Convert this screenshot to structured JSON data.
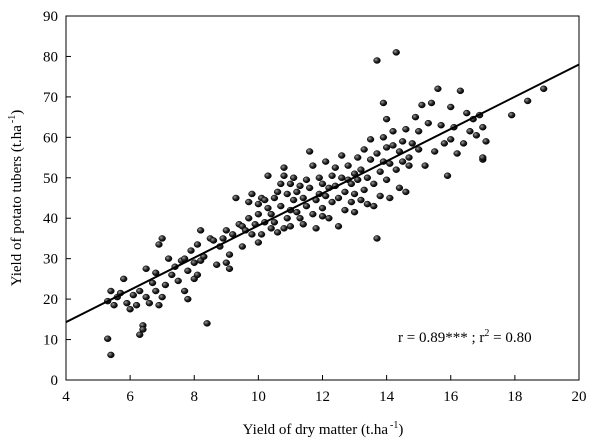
{
  "chart_data": {
    "type": "scatter",
    "xlabel": "Yield of dry matter (t.ha",
    "xlabel_sup": "-1",
    "xlabel_tail": ")",
    "ylabel": "Yield of potato tubers (t.ha",
    "ylabel_sup": "-1",
    "ylabel_tail": ")",
    "xlim": [
      4,
      20
    ],
    "ylim": [
      0,
      90
    ],
    "xticks": [
      "4",
      "6",
      "8",
      "10",
      "12",
      "14",
      "16",
      "18",
      "20"
    ],
    "yticks": [
      "0",
      "10",
      "20",
      "30",
      "40",
      "50",
      "60",
      "70",
      "80",
      "90"
    ],
    "grid": false,
    "annotation": {
      "prefix": "r = 0.89*** ; r",
      "sup": "2",
      "suffix": " = 0.80"
    },
    "fit_line": {
      "x": [
        4,
        20
      ],
      "y": [
        14.3,
        78.0
      ]
    },
    "points": [
      [
        5.3,
        10.2
      ],
      [
        5.4,
        6.2
      ],
      [
        5.3,
        19.5
      ],
      [
        5.4,
        22.0
      ],
      [
        5.5,
        18.5
      ],
      [
        5.6,
        20.5
      ],
      [
        5.7,
        21.5
      ],
      [
        5.8,
        25.0
      ],
      [
        5.9,
        19.0
      ],
      [
        6.0,
        17.5
      ],
      [
        6.1,
        21.0
      ],
      [
        6.2,
        18.5
      ],
      [
        6.3,
        11.2
      ],
      [
        6.3,
        22.0
      ],
      [
        6.4,
        13.5
      ],
      [
        6.4,
        12.5
      ],
      [
        6.5,
        20.5
      ],
      [
        6.5,
        27.5
      ],
      [
        6.6,
        19.0
      ],
      [
        6.7,
        24.0
      ],
      [
        6.8,
        22.0
      ],
      [
        6.8,
        26.5
      ],
      [
        6.9,
        18.5
      ],
      [
        6.9,
        33.5
      ],
      [
        7.0,
        35.0
      ],
      [
        7.0,
        20.5
      ],
      [
        7.1,
        23.5
      ],
      [
        7.2,
        30.0
      ],
      [
        7.3,
        26.0
      ],
      [
        7.4,
        28.0
      ],
      [
        7.5,
        24.5
      ],
      [
        7.6,
        29.5
      ],
      [
        7.7,
        30.0
      ],
      [
        7.7,
        22.0
      ],
      [
        7.8,
        27.0
      ],
      [
        7.8,
        20.0
      ],
      [
        7.9,
        32.0
      ],
      [
        8.0,
        29.0
      ],
      [
        8.0,
        25.0
      ],
      [
        8.1,
        26.0
      ],
      [
        8.1,
        33.5
      ],
      [
        8.2,
        37.0
      ],
      [
        8.2,
        29.5
      ],
      [
        8.3,
        30.5
      ],
      [
        8.4,
        14.0
      ],
      [
        8.5,
        35.0
      ],
      [
        8.6,
        34.5
      ],
      [
        8.7,
        28.5
      ],
      [
        8.8,
        33.0
      ],
      [
        8.9,
        35.0
      ],
      [
        9.0,
        37.0
      ],
      [
        9.0,
        29.0
      ],
      [
        9.1,
        31.0
      ],
      [
        9.1,
        27.5
      ],
      [
        9.2,
        36.0
      ],
      [
        9.3,
        45.0
      ],
      [
        9.4,
        38.5
      ],
      [
        9.5,
        38.0
      ],
      [
        9.5,
        33.0
      ],
      [
        9.6,
        37.0
      ],
      [
        9.7,
        40.0
      ],
      [
        9.7,
        44.0
      ],
      [
        9.8,
        36.0
      ],
      [
        9.8,
        46.0
      ],
      [
        9.9,
        38.5
      ],
      [
        10.0,
        41.0
      ],
      [
        10.0,
        43.5
      ],
      [
        10.0,
        34.0
      ],
      [
        10.1,
        36.0
      ],
      [
        10.1,
        45.0
      ],
      [
        10.2,
        39.0
      ],
      [
        10.2,
        44.5
      ],
      [
        10.3,
        50.5
      ],
      [
        10.3,
        42.5
      ],
      [
        10.4,
        41.0
      ],
      [
        10.4,
        37.5
      ],
      [
        10.5,
        45.0
      ],
      [
        10.5,
        39.0
      ],
      [
        10.6,
        46.5
      ],
      [
        10.6,
        36.5
      ],
      [
        10.7,
        48.5
      ],
      [
        10.7,
        43.0
      ],
      [
        10.8,
        50.5
      ],
      [
        10.8,
        52.5
      ],
      [
        10.8,
        37.5
      ],
      [
        10.9,
        46.0
      ],
      [
        10.9,
        40.0
      ],
      [
        11.0,
        42.0
      ],
      [
        11.0,
        48.5
      ],
      [
        11.0,
        38.0
      ],
      [
        11.1,
        44.5
      ],
      [
        11.1,
        50.0
      ],
      [
        11.2,
        41.5
      ],
      [
        11.2,
        46.5
      ],
      [
        11.3,
        40.0
      ],
      [
        11.3,
        48.0
      ],
      [
        11.4,
        45.0
      ],
      [
        11.4,
        38.5
      ],
      [
        11.5,
        49.5
      ],
      [
        11.5,
        43.0
      ],
      [
        11.6,
        56.5
      ],
      [
        11.6,
        47.5
      ],
      [
        11.7,
        41.0
      ],
      [
        11.7,
        53.0
      ],
      [
        11.8,
        44.5
      ],
      [
        11.8,
        37.5
      ],
      [
        11.9,
        50.0
      ],
      [
        11.9,
        46.0
      ],
      [
        12.0,
        42.5
      ],
      [
        12.0,
        48.5
      ],
      [
        12.0,
        40.5
      ],
      [
        12.1,
        54.0
      ],
      [
        12.1,
        45.5
      ],
      [
        12.2,
        47.5
      ],
      [
        12.2,
        40.0
      ],
      [
        12.3,
        50.5
      ],
      [
        12.3,
        44.0
      ],
      [
        12.4,
        52.5
      ],
      [
        12.4,
        48.0
      ],
      [
        12.5,
        45.0
      ],
      [
        12.5,
        38.0
      ],
      [
        12.6,
        50.0
      ],
      [
        12.6,
        55.5
      ],
      [
        12.7,
        46.5
      ],
      [
        12.7,
        42.0
      ],
      [
        12.8,
        49.5
      ],
      [
        12.8,
        53.0
      ],
      [
        12.9,
        44.0
      ],
      [
        12.9,
        48.5
      ],
      [
        13.0,
        51.0
      ],
      [
        13.0,
        46.0
      ],
      [
        13.0,
        41.5
      ],
      [
        13.1,
        55.0
      ],
      [
        13.1,
        49.5
      ],
      [
        13.2,
        52.0
      ],
      [
        13.2,
        44.5
      ],
      [
        13.3,
        57.0
      ],
      [
        13.3,
        47.0
      ],
      [
        13.4,
        50.0
      ],
      [
        13.4,
        43.5
      ],
      [
        13.5,
        54.5
      ],
      [
        13.5,
        59.5
      ],
      [
        13.6,
        48.5
      ],
      [
        13.6,
        43.0
      ],
      [
        13.7,
        79.0
      ],
      [
        13.7,
        35.0
      ],
      [
        13.7,
        56.0
      ],
      [
        13.8,
        51.5
      ],
      [
        13.8,
        45.5
      ],
      [
        13.9,
        68.5
      ],
      [
        13.9,
        60.0
      ],
      [
        13.9,
        54.0
      ],
      [
        14.0,
        64.5
      ],
      [
        14.0,
        49.5
      ],
      [
        14.0,
        57.5
      ],
      [
        14.1,
        45.0
      ],
      [
        14.1,
        53.5
      ],
      [
        14.2,
        61.5
      ],
      [
        14.2,
        58.0
      ],
      [
        14.3,
        81.0
      ],
      [
        14.3,
        52.0
      ],
      [
        14.4,
        56.5
      ],
      [
        14.4,
        47.5
      ],
      [
        14.5,
        54.0
      ],
      [
        14.5,
        59.0
      ],
      [
        14.6,
        62.0
      ],
      [
        14.6,
        46.5
      ],
      [
        14.7,
        55.0
      ],
      [
        14.7,
        53.0
      ],
      [
        14.8,
        58.5
      ],
      [
        14.9,
        65.0
      ],
      [
        15.0,
        57.0
      ],
      [
        15.0,
        61.5
      ],
      [
        15.1,
        68.0
      ],
      [
        15.2,
        53.0
      ],
      [
        15.3,
        63.5
      ],
      [
        15.4,
        68.5
      ],
      [
        15.5,
        56.5
      ],
      [
        15.6,
        72.0
      ],
      [
        15.7,
        63.0
      ],
      [
        15.8,
        58.5
      ],
      [
        15.9,
        50.5
      ],
      [
        16.0,
        59.5
      ],
      [
        16.0,
        67.5
      ],
      [
        16.1,
        62.5
      ],
      [
        16.2,
        56.0
      ],
      [
        16.3,
        71.5
      ],
      [
        16.4,
        58.5
      ],
      [
        16.5,
        66.0
      ],
      [
        16.6,
        61.5
      ],
      [
        16.7,
        64.5
      ],
      [
        16.8,
        60.5
      ],
      [
        16.9,
        65.5
      ],
      [
        17.0,
        62.5
      ],
      [
        17.0,
        54.5
      ],
      [
        17.1,
        59.0
      ],
      [
        17.0,
        55.0
      ],
      [
        17.9,
        65.5
      ],
      [
        18.4,
        69.0
      ],
      [
        18.9,
        72.0
      ]
    ]
  }
}
